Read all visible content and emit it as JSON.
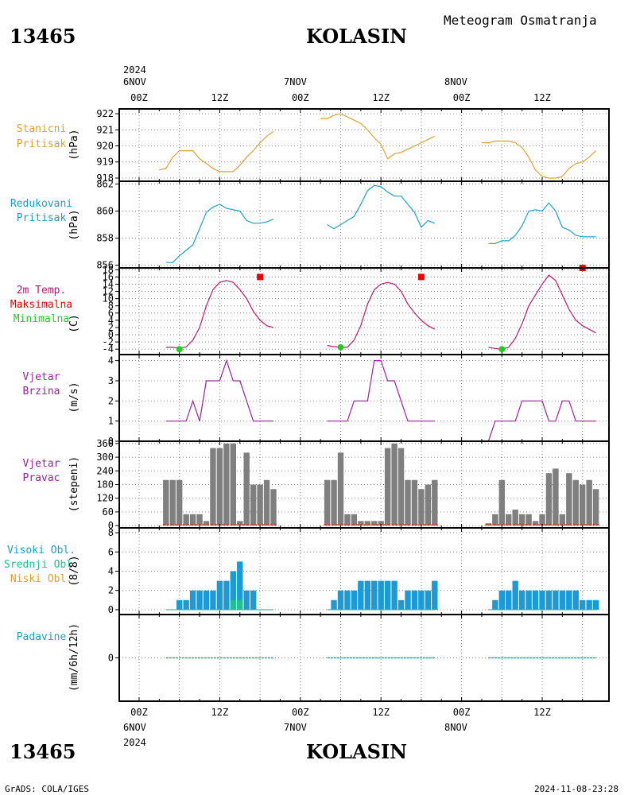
{
  "header": {
    "station_id": "13465",
    "station_name": "KOLASIN",
    "product": "Meteogram Osmatranja"
  },
  "footer": {
    "credit": "GrADS: COLA/IGES",
    "timestamp": "2024-11-08-23:28"
  },
  "time_axis": {
    "year": "2024",
    "day_labels": [
      "6NOV",
      "7NOV",
      "8NOV"
    ],
    "hour_labels": [
      "00Z",
      "12Z",
      "00Z",
      "12Z",
      "00Z",
      "12Z"
    ]
  },
  "colors": {
    "station_pressure": "#e0a030",
    "reduced_pressure": "#1aa0d0",
    "temperature": "#c01870",
    "tmax": "#ee0000",
    "tmin": "#22cc22",
    "wind_speed": "#a020a0",
    "wind_dir_bar": "#7f7f7f",
    "cloud_high": "#1a9ad6",
    "cloud_mid": "#20c090",
    "cloud_low": "#e0a030",
    "precip": "#20a0c0"
  },
  "chart_data": [
    {
      "type": "line",
      "name": "station_pressure",
      "labels": [
        "Stanicni",
        "Pritisak"
      ],
      "unit": "(hPa)",
      "ylim": [
        917.8,
        922.3
      ],
      "yticks": [
        918,
        919,
        920,
        921,
        922
      ],
      "x_unit": "hours since 6NOV 00Z",
      "segments": [
        {
          "x": [
            3,
            4,
            5,
            6,
            7,
            8,
            9,
            10,
            11,
            12,
            13,
            14,
            15,
            16,
            17,
            18,
            19,
            20
          ],
          "y": [
            918.5,
            918.6,
            919.3,
            919.7,
            919.7,
            919.7,
            919.2,
            918.9,
            918.6,
            918.4,
            918.4,
            918.4,
            918.8,
            919.3,
            919.7,
            920.2,
            920.6,
            920.9
          ]
        },
        {
          "x": [
            27,
            28,
            29,
            30,
            31,
            32,
            33,
            34,
            35,
            36,
            37,
            38,
            39,
            40,
            41,
            42,
            43,
            44
          ],
          "y": [
            921.7,
            921.7,
            921.9,
            922.0,
            921.8,
            921.6,
            921.4,
            921.0,
            920.5,
            920.1,
            919.2,
            919.5,
            919.6,
            919.8,
            920.0,
            920.2,
            920.4,
            920.6
          ]
        },
        {
          "x": [
            51,
            52,
            53,
            54,
            55,
            56,
            57,
            58,
            59,
            60,
            61,
            62,
            63,
            64,
            65,
            66,
            67,
            68
          ],
          "y": [
            920.2,
            920.2,
            920.3,
            920.3,
            920.3,
            920.2,
            919.9,
            919.3,
            918.5,
            918.1,
            918.0,
            918.0,
            918.1,
            918.6,
            918.9,
            919.0,
            919.3,
            919.7
          ]
        }
      ]
    },
    {
      "type": "line",
      "name": "reduced_pressure",
      "labels": [
        "Redukovani",
        "Pritisak"
      ],
      "unit": "(hPa)",
      "ylim": [
        855.8,
        862.2
      ],
      "yticks": [
        856,
        858,
        860,
        862
      ],
      "x_unit": "hours since 6NOV 00Z",
      "segments": [
        {
          "x": [
            4,
            5,
            6,
            7,
            8,
            9,
            10,
            11,
            12,
            13,
            14,
            15,
            16,
            17,
            18,
            19,
            20
          ],
          "y": [
            856.2,
            856.2,
            856.7,
            857.1,
            857.5,
            858.7,
            859.9,
            860.3,
            860.5,
            860.2,
            860.1,
            860.0,
            859.3,
            859.1,
            859.1,
            859.2,
            859.4
          ]
        },
        {
          "x": [
            28,
            29,
            30,
            31,
            32,
            33,
            34,
            35,
            36,
            37,
            38,
            39,
            40,
            41,
            42,
            43,
            44
          ],
          "y": [
            859.0,
            858.7,
            859.0,
            859.3,
            859.6,
            860.5,
            861.5,
            861.9,
            861.8,
            861.4,
            861.1,
            861.1,
            860.5,
            859.9,
            858.8,
            859.3,
            859.1
          ]
        },
        {
          "x": [
            52,
            53,
            54,
            55,
            56,
            57,
            58,
            59,
            60,
            61,
            62,
            63,
            64,
            65,
            66,
            67,
            68
          ],
          "y": [
            857.6,
            857.6,
            857.8,
            857.8,
            858.2,
            858.9,
            860.0,
            860.1,
            860.0,
            860.6,
            860.0,
            858.8,
            858.6,
            858.2,
            858.1,
            858.1,
            858.1
          ]
        }
      ]
    },
    {
      "type": "line",
      "name": "temperature_2m",
      "labels": [
        "2m Temp.",
        "Maksimalna",
        "Minimalna"
      ],
      "unit": "(C)",
      "ylim": [
        -5.5,
        18.5
      ],
      "yticks": [
        -4,
        -2,
        0,
        2,
        4,
        6,
        8,
        10,
        12,
        14,
        16,
        18
      ],
      "x_unit": "hours since 6NOV 00Z",
      "segments": [
        {
          "x": [
            4,
            5,
            6,
            7,
            8,
            9,
            10,
            11,
            12,
            13,
            14,
            15,
            16,
            17,
            18,
            19,
            20
          ],
          "y": [
            -3.5,
            -3.5,
            -3.7,
            -3.4,
            -1.5,
            2.0,
            8.0,
            12.5,
            14.5,
            15.0,
            14.5,
            12.5,
            10.0,
            6.5,
            4.0,
            2.5,
            2.0
          ]
        },
        {
          "x": [
            28,
            29,
            30,
            31,
            32,
            33,
            34,
            35,
            36,
            37,
            38,
            39,
            40,
            41,
            42,
            43,
            44
          ],
          "y": [
            -3.0,
            -3.3,
            -3.5,
            -3.5,
            -1.5,
            2.5,
            8.5,
            12.5,
            14.0,
            14.5,
            14.0,
            12.0,
            8.5,
            6.0,
            4.0,
            2.5,
            1.5
          ]
        },
        {
          "x": [
            52,
            53,
            54,
            55,
            56,
            57,
            58,
            59,
            60,
            61,
            62,
            63,
            64,
            65,
            66,
            67,
            68
          ],
          "y": [
            -3.5,
            -3.8,
            -4.0,
            -3.5,
            -1.0,
            3.0,
            8.0,
            11.0,
            14.0,
            16.5,
            15.0,
            11.0,
            7.0,
            4.0,
            2.5,
            1.5,
            0.5
          ]
        }
      ],
      "tmax": [
        {
          "x": 18,
          "y": 16
        },
        {
          "x": 42,
          "y": 16
        },
        {
          "x": 66,
          "y": 18.5
        }
      ],
      "tmin": [
        {
          "x": 6,
          "y": -4
        },
        {
          "x": 30,
          "y": -3.5
        },
        {
          "x": 54,
          "y": -4
        }
      ]
    },
    {
      "type": "line",
      "name": "wind_speed",
      "labels": [
        "Vjetar",
        "Brzina"
      ],
      "unit": "(m/s)",
      "ylim": [
        0,
        4.3
      ],
      "yticks": [
        0,
        1,
        2,
        3,
        4
      ],
      "x_unit": "hours since 6NOV 00Z",
      "segments": [
        {
          "x": [
            4,
            5,
            6,
            7,
            8,
            9,
            10,
            11,
            12,
            13,
            14,
            15,
            16,
            17,
            18,
            19,
            20
          ],
          "y": [
            1,
            1,
            1,
            1,
            2,
            1,
            3,
            3,
            3,
            4,
            3,
            3,
            2,
            1,
            1,
            1,
            1
          ]
        },
        {
          "x": [
            28,
            29,
            30,
            31,
            32,
            33,
            34,
            35,
            36,
            37,
            38,
            39,
            40,
            41,
            42,
            43,
            44
          ],
          "y": [
            1,
            1,
            1,
            1,
            2,
            2,
            2,
            4,
            4,
            3,
            3,
            2,
            1,
            1,
            1,
            1,
            1
          ]
        },
        {
          "x": [
            52,
            53,
            54,
            55,
            56,
            57,
            58,
            59,
            60,
            61,
            62,
            63,
            64,
            65,
            66,
            67,
            68
          ],
          "y": [
            0,
            1,
            1,
            1,
            1,
            2,
            2,
            2,
            2,
            1,
            1,
            2,
            2,
            1,
            1,
            1,
            1
          ]
        }
      ]
    },
    {
      "type": "bar",
      "name": "wind_direction",
      "labels": [
        "Vjetar",
        "Pravac"
      ],
      "unit": "(stepeni)",
      "ylim": [
        -10,
        370
      ],
      "yticks": [
        0,
        60,
        120,
        180,
        240,
        300,
        360
      ],
      "x_unit": "hours since 6NOV 00Z",
      "x": [
        4,
        5,
        6,
        7,
        8,
        9,
        10,
        11,
        12,
        13,
        14,
        15,
        16,
        17,
        18,
        19,
        20,
        28,
        29,
        30,
        31,
        32,
        33,
        34,
        35,
        36,
        37,
        38,
        39,
        40,
        41,
        42,
        43,
        44,
        52,
        53,
        54,
        55,
        56,
        57,
        58,
        59,
        60,
        61,
        62,
        63,
        64,
        65,
        66,
        67,
        68
      ],
      "values": [
        200,
        200,
        200,
        50,
        50,
        50,
        20,
        340,
        340,
        360,
        360,
        20,
        320,
        180,
        180,
        200,
        160,
        200,
        200,
        320,
        50,
        50,
        20,
        20,
        20,
        20,
        340,
        360,
        340,
        200,
        200,
        160,
        180,
        200,
        10,
        50,
        200,
        50,
        70,
        50,
        50,
        20,
        50,
        230,
        250,
        50,
        230,
        200,
        180,
        200,
        160
      ]
    },
    {
      "type": "bar",
      "name": "cloud_cover",
      "labels": [
        "Visoki Obl.",
        "Srednji Obl.",
        "Niski Obl."
      ],
      "unit": "(8/8)",
      "ylim": [
        -0.5,
        8.5
      ],
      "yticks": [
        0,
        2,
        4,
        6,
        8
      ],
      "x_unit": "hours since 6NOV 00Z",
      "x": [
        4,
        5,
        6,
        7,
        8,
        9,
        10,
        11,
        12,
        13,
        14,
        15,
        16,
        17,
        18,
        19,
        20,
        28,
        29,
        30,
        31,
        32,
        33,
        34,
        35,
        36,
        37,
        38,
        39,
        40,
        41,
        42,
        43,
        44,
        52,
        53,
        54,
        55,
        56,
        57,
        58,
        59,
        60,
        61,
        62,
        63,
        64,
        65,
        66,
        67,
        68
      ],
      "high": [
        0,
        0,
        1,
        1,
        2,
        2,
        2,
        2,
        3,
        3,
        4,
        5,
        2,
        2,
        0,
        0,
        0,
        0,
        1,
        2,
        2,
        2,
        3,
        3,
        3,
        3,
        3,
        3,
        1,
        2,
        2,
        2,
        2,
        3,
        0,
        1,
        2,
        2,
        3,
        2,
        2,
        2,
        2,
        2,
        2,
        2,
        2,
        2,
        1,
        1,
        1
      ],
      "mid": [
        0,
        0,
        0,
        0,
        0,
        0,
        0,
        0,
        0,
        0,
        1,
        1,
        0,
        0,
        0,
        0,
        0,
        0,
        0,
        0,
        0,
        0,
        0,
        0,
        0,
        0,
        0,
        0,
        0,
        0,
        0,
        0,
        0,
        0,
        0,
        0,
        0,
        0,
        0,
        0,
        0,
        0,
        0,
        0,
        0,
        0,
        0,
        0,
        0,
        0,
        0
      ]
    },
    {
      "type": "line",
      "name": "precipitation",
      "labels": [
        "Padavine"
      ],
      "unit": "(mm/6h/12h)",
      "ylim": [
        -4,
        4
      ],
      "yticks": [
        0
      ],
      "x_unit": "hours since 6NOV 00Z",
      "segments": [
        {
          "x": [
            4,
            20
          ],
          "y": [
            0,
            0
          ]
        },
        {
          "x": [
            28,
            44
          ],
          "y": [
            0,
            0
          ]
        },
        {
          "x": [
            52,
            68
          ],
          "y": [
            0,
            0
          ]
        }
      ]
    }
  ]
}
